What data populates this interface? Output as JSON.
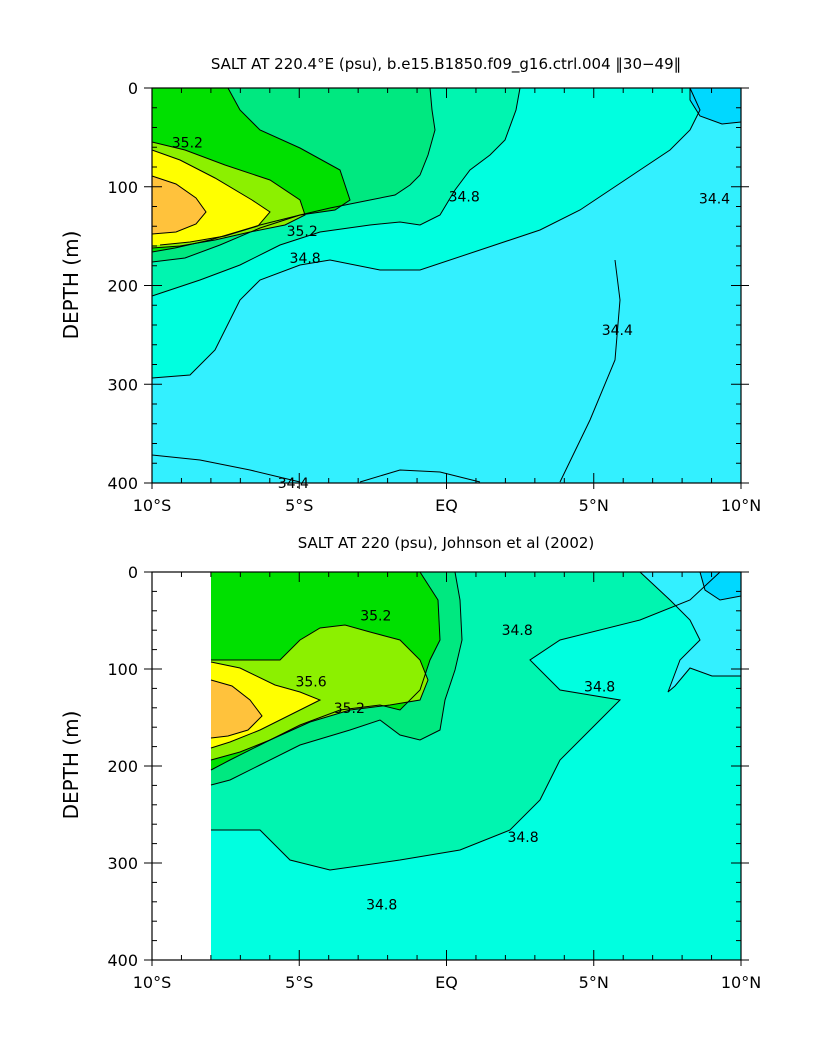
{
  "colors": {
    "le_344": "#00d8ff",
    "c34_4_34_6": "#33f0ff",
    "c34_6_34_8": "#00ffe0",
    "c34_8_35_0": "#00f5b0",
    "c35_0_35_2": "#00e880",
    "c35_2_35_4": "#00e000",
    "c35_4_35_6": "#8cf000",
    "c35_6_35_8": "#ffff00",
    "gt_358": "#ffc23c"
  },
  "chart_data": [
    {
      "type": "contour",
      "title": "SALT AT 220.4°E (psu), b.e15.B1850.f09_g16.ctrl.004 ‖30−49‖",
      "ylabel": "DEPTH (m)",
      "xlabel": "",
      "x_ticks": [
        "10°S",
        "5°S",
        "EQ",
        "5°N",
        "10°N"
      ],
      "y_ticks": [
        "0",
        "100",
        "200",
        "300",
        "400"
      ],
      "xlim": [
        -10,
        10
      ],
      "ylim": [
        400,
        0
      ],
      "contour_labels": [
        {
          "text": "35.2",
          "lat": -8.8,
          "depth": 55
        },
        {
          "text": "35.2",
          "lat": -4.9,
          "depth": 145
        },
        {
          "text": "34.8",
          "lat": -4.8,
          "depth": 172
        },
        {
          "text": "34.8",
          "lat": 0.6,
          "depth": 110
        },
        {
          "text": "34.4",
          "lat": 9.1,
          "depth": 112
        },
        {
          "text": "34.4",
          "lat": 5.8,
          "depth": 245
        },
        {
          "text": "34.4",
          "lat": -5.2,
          "depth": 400
        }
      ]
    },
    {
      "type": "contour",
      "title": "SALT AT 220 (psu), Johnson et al (2002)",
      "ylabel": "DEPTH (m)",
      "xlabel": "",
      "x_ticks": [
        "10°S",
        "5°S",
        "EQ",
        "5°N",
        "10°N"
      ],
      "y_ticks": [
        "0",
        "100",
        "200",
        "300",
        "400"
      ],
      "xlim": [
        -10,
        10
      ],
      "ylim": [
        400,
        0
      ],
      "data_start_lat": -8,
      "contour_labels": [
        {
          "text": "35.2",
          "lat": -2.4,
          "depth": 45
        },
        {
          "text": "35.6",
          "lat": -4.6,
          "depth": 113
        },
        {
          "text": "35.2",
          "lat": -3.3,
          "depth": 140
        },
        {
          "text": "34.8",
          "lat": 2.4,
          "depth": 60
        },
        {
          "text": "34.8",
          "lat": 5.2,
          "depth": 118
        },
        {
          "text": "34.8",
          "lat": 2.6,
          "depth": 273
        },
        {
          "text": "34.8",
          "lat": -2.2,
          "depth": 343
        }
      ]
    }
  ]
}
